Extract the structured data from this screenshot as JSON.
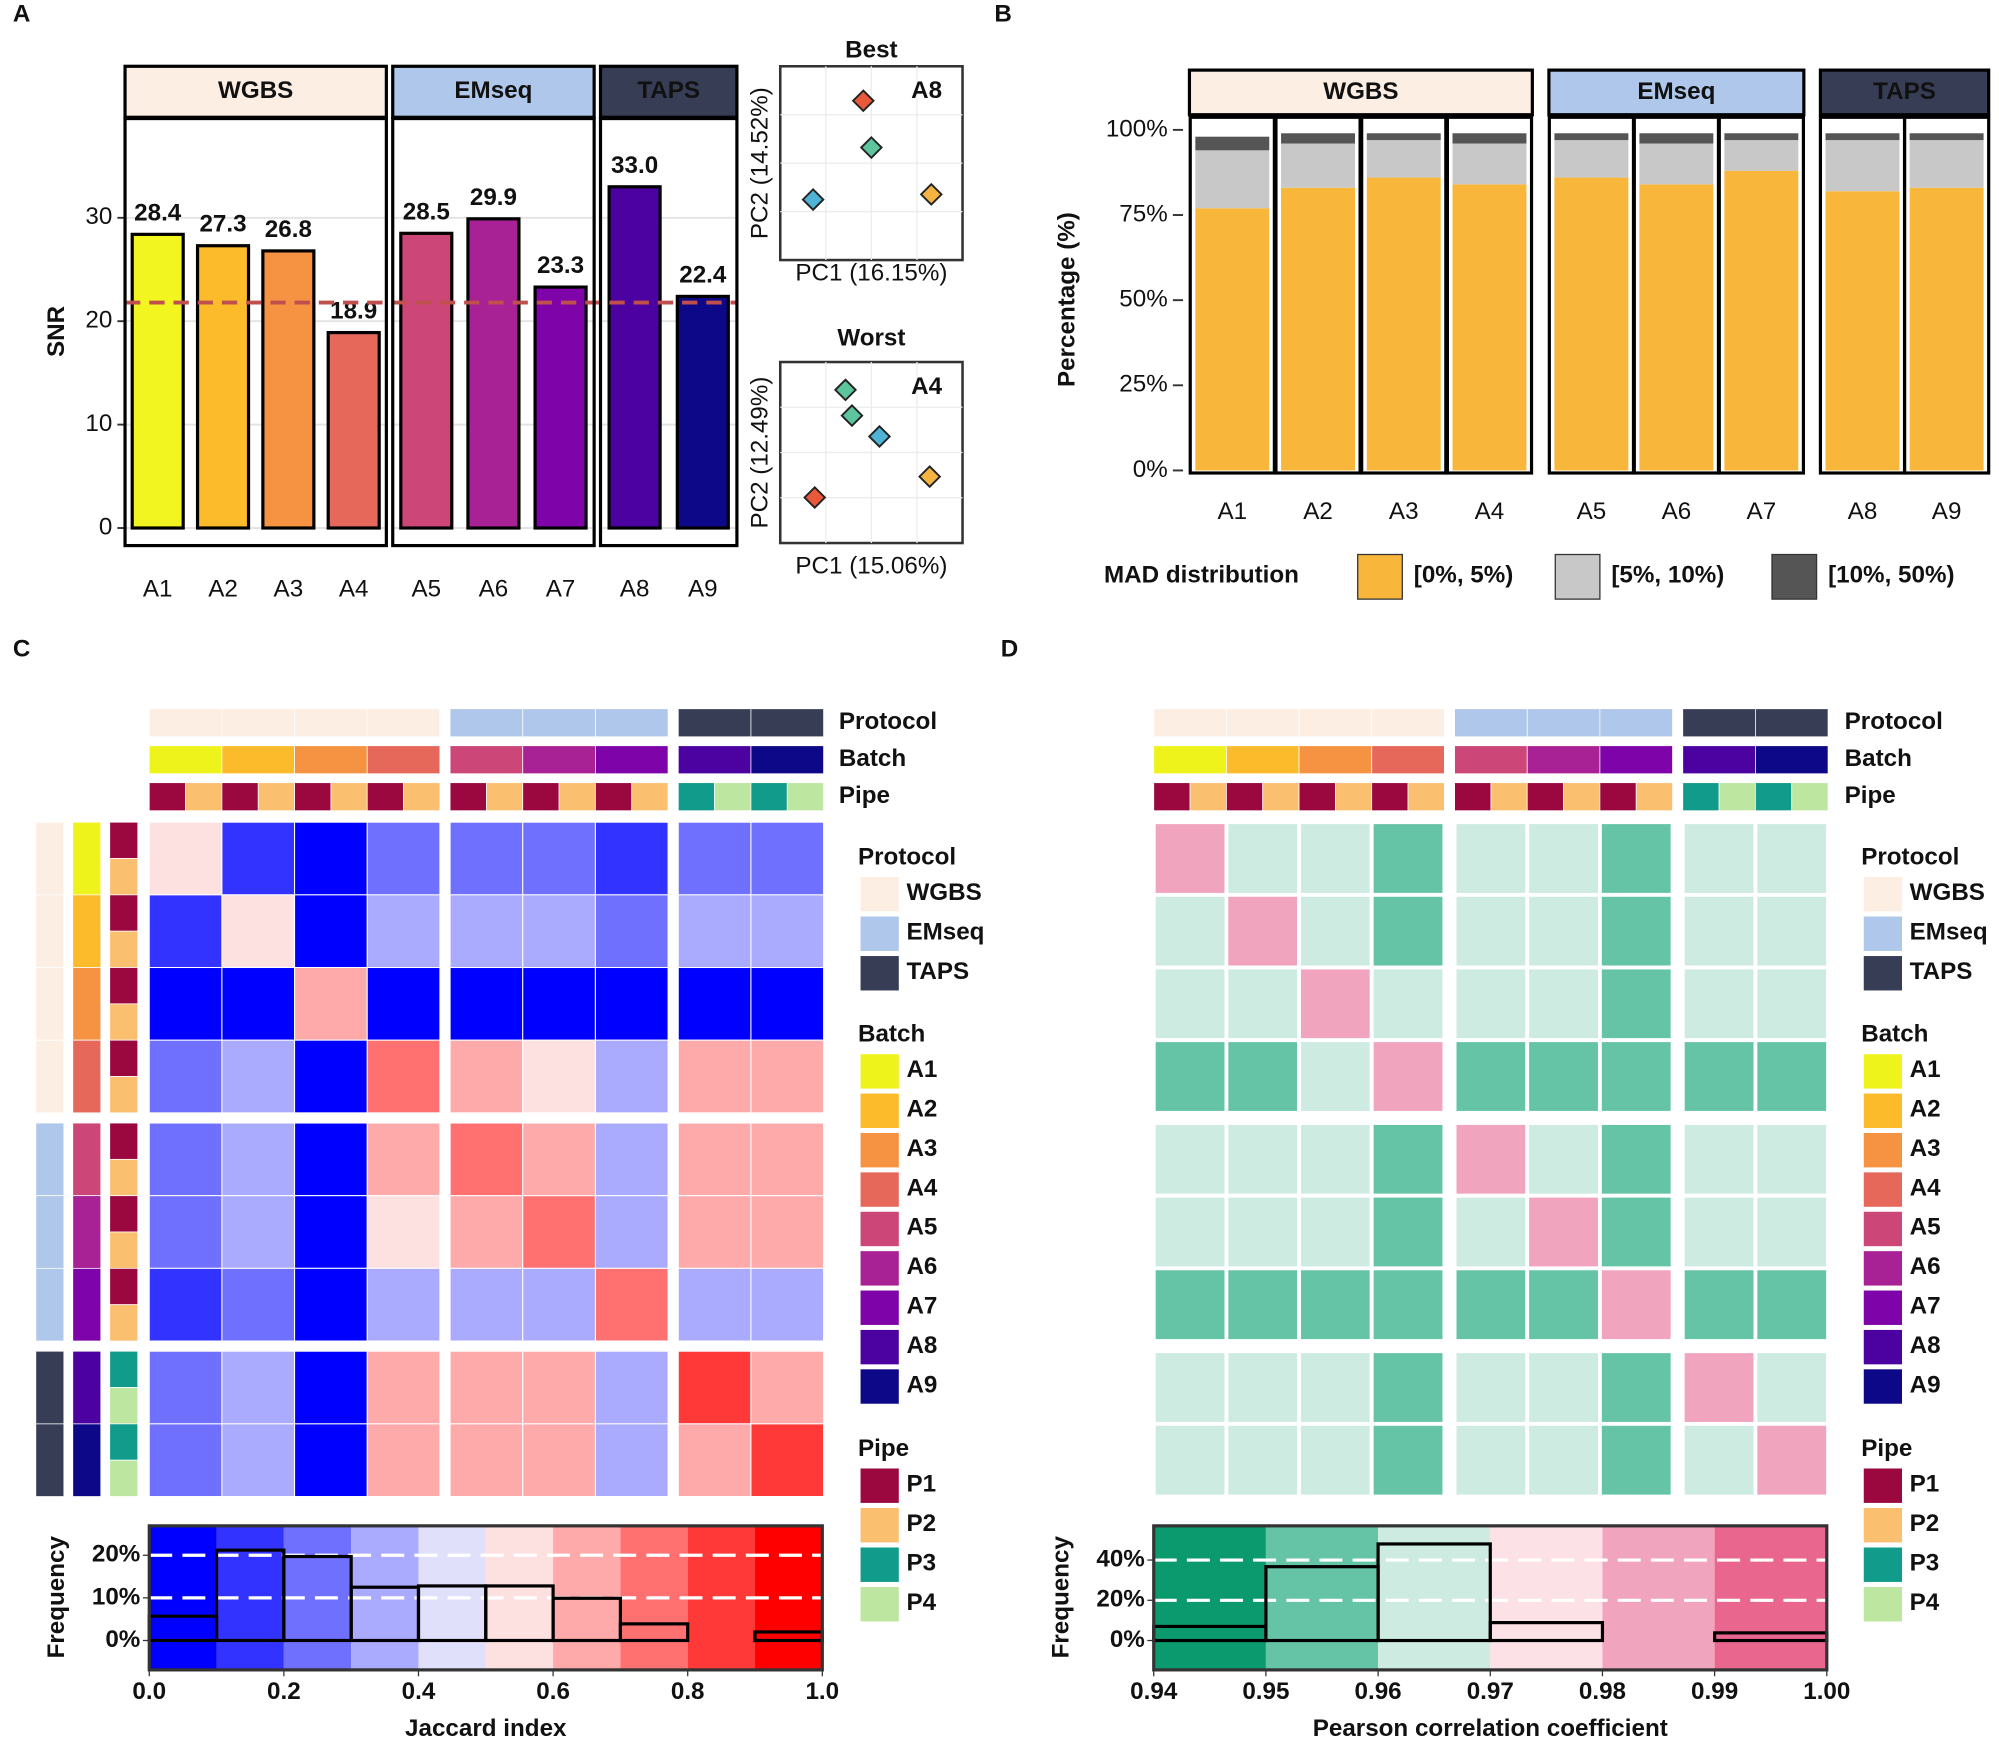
{
  "annotation": {
    "labels": [
      "Protocol",
      "Batch",
      "Pipe"
    ],
    "protocols": [
      {
        "name": "WGBS",
        "color": "#fdeee3"
      },
      {
        "name": "EMseq",
        "color": "#aec7ea"
      },
      {
        "name": "TAPS",
        "color": "#383d56"
      }
    ],
    "batches": [
      {
        "name": "A1",
        "color": "#eef31c",
        "protocol": 0,
        "pipes": [
          0,
          1
        ]
      },
      {
        "name": "A2",
        "color": "#fbbb2a",
        "protocol": 0,
        "pipes": [
          0,
          1
        ]
      },
      {
        "name": "A3",
        "color": "#f59342",
        "protocol": 0,
        "pipes": [
          0,
          1
        ]
      },
      {
        "name": "A4",
        "color": "#e6685b",
        "protocol": 0,
        "pipes": [
          0,
          1
        ]
      },
      {
        "name": "A5",
        "color": "#cc4778",
        "protocol": 1,
        "pipes": [
          0,
          1
        ]
      },
      {
        "name": "A6",
        "color": "#a82296",
        "protocol": 1,
        "pipes": [
          0,
          1
        ]
      },
      {
        "name": "A7",
        "color": "#7e03a8",
        "protocol": 1,
        "pipes": [
          0,
          1
        ]
      },
      {
        "name": "A8",
        "color": "#4c02a1",
        "protocol": 2,
        "pipes": [
          2,
          3
        ]
      },
      {
        "name": "A9",
        "color": "#0d0887",
        "protocol": 2,
        "pipes": [
          2,
          3
        ]
      }
    ],
    "pipes": [
      {
        "name": "P1",
        "color": "#9b0840"
      },
      {
        "name": "P2",
        "color": "#fbbf70"
      },
      {
        "name": "P3",
        "color": "#119b8a"
      },
      {
        "name": "P4",
        "color": "#bde6a0"
      }
    ]
  },
  "chart_data": [
    {
      "type": "bar",
      "panel": "A",
      "ylabel": "SNR",
      "categories": [
        "A1",
        "A2",
        "A3",
        "A4",
        "A5",
        "A6",
        "A7",
        "A8",
        "A9"
      ],
      "values": [
        28.4,
        27.3,
        26.8,
        18.9,
        28.5,
        29.9,
        23.3,
        33.0,
        22.4
      ],
      "value_labels": [
        "28.4",
        "27.3",
        "26.8",
        "18.9",
        "28.5",
        "29.9",
        "23.3",
        "33.0",
        "22.4"
      ],
      "colors": [
        "#f2f51f",
        "#fbbb2a",
        "#f59342",
        "#e6685b",
        "#cc4778",
        "#a82296",
        "#7e03a8",
        "#4c02a1",
        "#0d0887"
      ],
      "groups": [
        {
          "name": "WGBS",
          "color": "#fdeee3",
          "text_color": "#3b3f5c",
          "members": [
            "A1",
            "A2",
            "A3",
            "A4"
          ]
        },
        {
          "name": "EMseq",
          "color": "#aec7ea",
          "text_color": "#3b3f5c",
          "members": [
            "A5",
            "A6",
            "A7"
          ]
        },
        {
          "name": "TAPS",
          "color": "#383d56",
          "text_color": "#ffffff",
          "members": [
            "A8",
            "A9"
          ]
        }
      ],
      "reference_line": 21.8,
      "reference_color": "#c0504d",
      "ylim": [
        -1.7,
        39.6
      ],
      "yticks": [
        0,
        10,
        20,
        30
      ],
      "grid": true
    },
    {
      "type": "scatter",
      "title": "Best",
      "label": "A8",
      "xlabel": "PC1 (16.15%)",
      "ylabel": "PC2 (14.52%)",
      "x": [
        0.45,
        0.5,
        0.14,
        0.87
      ],
      "y": [
        0.86,
        0.59,
        0.29,
        0.32
      ],
      "colors": [
        "#e8593a",
        "#5dc59e",
        "#4fb3d6",
        "#f5b342"
      ],
      "xlim": [
        0,
        1
      ],
      "ylim": [
        0,
        1
      ]
    },
    {
      "type": "scatter",
      "title": "Worst",
      "label": "A4",
      "xlabel": "PC1 (15.06%)",
      "ylabel": "PC2 (12.49%)",
      "x": [
        0.34,
        0.38,
        0.55,
        0.15,
        0.86
      ],
      "y": [
        0.89,
        0.73,
        0.6,
        0.22,
        0.35
      ],
      "colors": [
        "#5dc59e",
        "#5dc59e",
        "#4fb3d6",
        "#e8593a",
        "#f5b342"
      ],
      "xlim": [
        0,
        1
      ],
      "ylim": [
        0,
        1
      ]
    },
    {
      "type": "stacked_bar",
      "panel": "B",
      "ylabel": "Percentage (%)",
      "categories": [
        "A1",
        "A2",
        "A3",
        "A4",
        "A5",
        "A6",
        "A7",
        "A8",
        "A9"
      ],
      "groups": [
        {
          "name": "WGBS",
          "color": "#fdeee3",
          "text_color": "#3b3f5c",
          "members": [
            "A1",
            "A2",
            "A3",
            "A4"
          ]
        },
        {
          "name": "EMseq",
          "color": "#aec7ea",
          "text_color": "#3b3f5c",
          "members": [
            "A5",
            "A6",
            "A7"
          ]
        },
        {
          "name": "TAPS",
          "color": "#383d56",
          "text_color": "#ffffff",
          "members": [
            "A8",
            "A9"
          ]
        }
      ],
      "legend_title": "MAD distribution",
      "series": [
        {
          "name": "[0%, 5%)",
          "color": "#f8b73b",
          "values": [
            77,
            83,
            86,
            84,
            86,
            84,
            88,
            82,
            83
          ]
        },
        {
          "name": "[5%, 10%)",
          "color": "#c8c8c8",
          "values": [
            17,
            13,
            11,
            12,
            11,
            12,
            9,
            15,
            14
          ]
        },
        {
          "name": "[10%, 50%)",
          "color": "#555555",
          "values": [
            4,
            3,
            2,
            3,
            2,
            3,
            2,
            2,
            2
          ]
        }
      ],
      "ylim": [
        -1.1,
        103.7
      ],
      "yticks": [
        {
          "value": 0,
          "label": "0%"
        },
        {
          "value": 25,
          "label": "25%"
        },
        {
          "value": 50,
          "label": "50%"
        },
        {
          "value": 75,
          "label": "75%"
        },
        {
          "value": 100,
          "label": "100%"
        }
      ]
    },
    {
      "type": "heatmap",
      "panel": "C",
      "values": [
        [
          0.55,
          0.15,
          0.08,
          0.25,
          0.2,
          0.2,
          0.15,
          0.25,
          0.2
        ],
        [
          0.15,
          0.55,
          0.05,
          0.35,
          0.35,
          0.3,
          0.2,
          0.35,
          0.3
        ],
        [
          0.08,
          0.05,
          0.6,
          0.05,
          0.05,
          0.05,
          0.05,
          0.05,
          0.05
        ],
        [
          0.25,
          0.35,
          0.05,
          0.75,
          0.6,
          0.55,
          0.3,
          0.6,
          0.6
        ],
        [
          0.2,
          0.35,
          0.05,
          0.6,
          0.75,
          0.6,
          0.35,
          0.65,
          0.6
        ],
        [
          0.2,
          0.3,
          0.05,
          0.55,
          0.6,
          0.75,
          0.3,
          0.6,
          0.6
        ],
        [
          0.15,
          0.2,
          0.05,
          0.3,
          0.35,
          0.3,
          0.75,
          0.3,
          0.3
        ],
        [
          0.25,
          0.35,
          0.05,
          0.6,
          0.65,
          0.6,
          0.3,
          0.8,
          0.65
        ],
        [
          0.2,
          0.3,
          0.05,
          0.6,
          0.6,
          0.6,
          0.3,
          0.65,
          0.8
        ]
      ],
      "bins": [
        0,
        0.1,
        0.2,
        0.3,
        0.4,
        0.5,
        0.6,
        0.7,
        0.8,
        0.9,
        1
      ],
      "counts": [
        5.7,
        21.2,
        19.7,
        12.5,
        12.8,
        12.8,
        9.9,
        3.9,
        0,
        2.0
      ],
      "colors": [
        "#0000ff",
        "#3333ff",
        "#7070ff",
        "#aaaaff",
        "#e0e0fa",
        "#fde0e0",
        "#ffaaaa",
        "#ff7070",
        "#ff3838",
        "#ff0000"
      ],
      "xlabel": "Jaccard index",
      "ylabel": "Frequency",
      "xlim": [
        0,
        1
      ],
      "xticks": [
        {
          "value": 0,
          "label": "0.0"
        },
        0.2,
        0.4,
        0.6,
        0.8,
        {
          "value": 1,
          "label": "1.0"
        }
      ],
      "ylim": [
        -6.9,
        26.9
      ],
      "yticks": [
        {
          "value": 0,
          "label": "0%"
        },
        {
          "value": 10,
          "label": "10%"
        },
        {
          "value": 20,
          "label": "20%"
        }
      ]
    },
    {
      "type": "heatmap",
      "panel": "D",
      "values": [
        [
          0.985,
          0.965,
          0.965,
          0.955,
          0.963,
          0.963,
          0.955,
          0.965,
          0.963
        ],
        [
          0.965,
          0.985,
          0.962,
          0.957,
          0.963,
          0.964,
          0.955,
          0.965,
          0.963
        ],
        [
          0.965,
          0.962,
          0.985,
          0.962,
          0.963,
          0.963,
          0.957,
          0.965,
          0.963
        ],
        [
          0.955,
          0.957,
          0.962,
          0.985,
          0.958,
          0.957,
          0.952,
          0.958,
          0.957
        ],
        [
          0.963,
          0.963,
          0.963,
          0.958,
          0.985,
          0.966,
          0.957,
          0.965,
          0.964
        ],
        [
          0.963,
          0.964,
          0.963,
          0.957,
          0.966,
          0.985,
          0.958,
          0.965,
          0.964
        ],
        [
          0.955,
          0.955,
          0.957,
          0.952,
          0.957,
          0.958,
          0.985,
          0.957,
          0.956
        ],
        [
          0.965,
          0.965,
          0.965,
          0.958,
          0.965,
          0.965,
          0.957,
          0.985,
          0.966
        ],
        [
          0.963,
          0.963,
          0.963,
          0.957,
          0.964,
          0.964,
          0.956,
          0.966,
          0.985
        ]
      ],
      "bins": [
        0.94,
        0.95,
        0.96,
        0.97,
        0.98,
        0.99,
        1.0
      ],
      "counts": [
        7,
        36.7,
        48,
        8.9,
        0,
        3.8
      ],
      "colors": [
        "#0b9a6e",
        "#66c4a6",
        "#cdebe1",
        "#fce1e7",
        "#f1a4be",
        "#e9668e"
      ],
      "xlabel": "Pearson correlation coefficient",
      "ylabel": "Frequency",
      "xlim": [
        0.94,
        1.0
      ],
      "xticks": [
        0.94,
        0.95,
        0.96,
        0.97,
        0.98,
        0.99,
        {
          "value": 1,
          "label": "1.00"
        }
      ],
      "ylim": [
        -14.6,
        57
      ],
      "yticks": [
        {
          "value": 0,
          "label": "0%"
        },
        {
          "value": 20,
          "label": "20%"
        },
        {
          "value": 40,
          "label": "40%"
        }
      ]
    }
  ]
}
